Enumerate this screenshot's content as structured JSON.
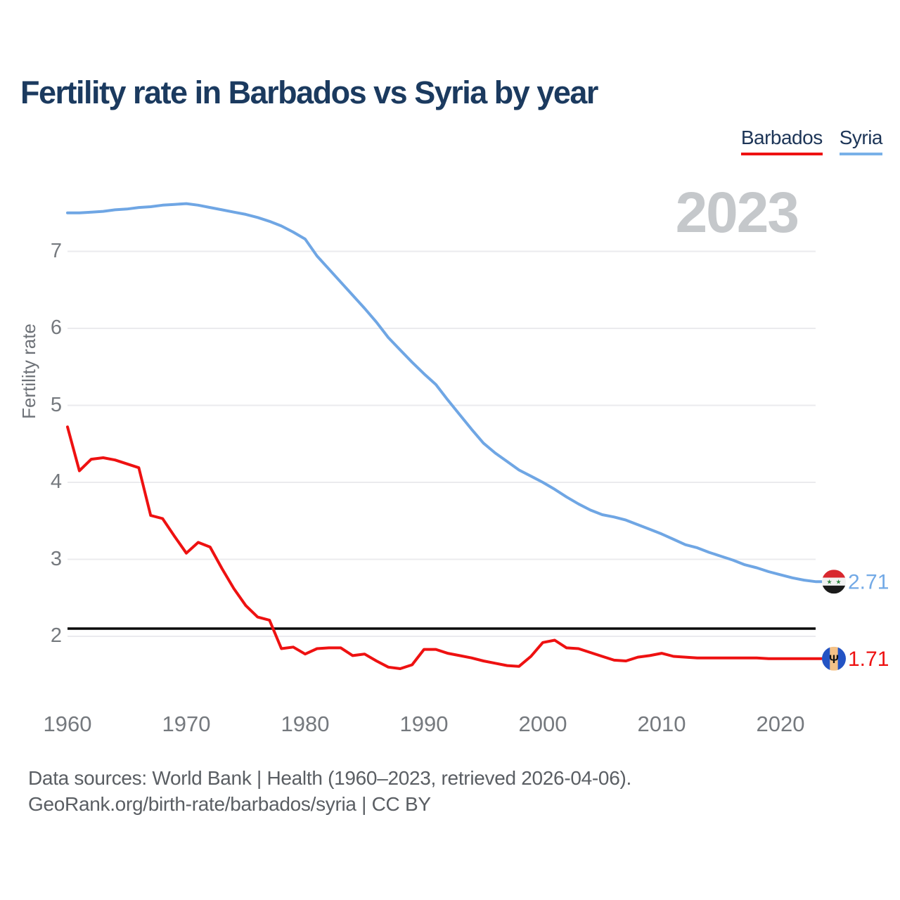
{
  "header": {
    "title": "Fertility rate in Barbados vs Syria by year"
  },
  "legend": {
    "items": [
      {
        "label": "Barbados",
        "color": "#ee1111"
      },
      {
        "label": "Syria",
        "color": "#79b1e8"
      }
    ]
  },
  "watermark": "2023",
  "chart_data": {
    "type": "line",
    "title": "Fertility rate in Barbados vs Syria by year",
    "xlabel": "",
    "ylabel": "Fertility rate",
    "x_range": [
      1960,
      2023
    ],
    "ylim": [
      1.4,
      7.9
    ],
    "grid": "horizontal",
    "legend_position": "top-right",
    "y_ticks": [
      2,
      3,
      4,
      5,
      6,
      7
    ],
    "x_ticks": [
      1960,
      1970,
      1980,
      1990,
      2000,
      2010,
      2020
    ],
    "reference_line": {
      "value": 2.1,
      "color": "#0a0a0a"
    },
    "years": [
      1960,
      1961,
      1962,
      1963,
      1964,
      1965,
      1966,
      1967,
      1968,
      1969,
      1970,
      1971,
      1972,
      1973,
      1974,
      1975,
      1976,
      1977,
      1978,
      1979,
      1980,
      1981,
      1982,
      1983,
      1984,
      1985,
      1986,
      1987,
      1988,
      1989,
      1990,
      1991,
      1992,
      1993,
      1994,
      1995,
      1996,
      1997,
      1998,
      1999,
      2000,
      2001,
      2002,
      2003,
      2004,
      2005,
      2006,
      2007,
      2008,
      2009,
      2010,
      2011,
      2012,
      2013,
      2014,
      2015,
      2016,
      2017,
      2018,
      2019,
      2020,
      2021,
      2022,
      2023
    ],
    "series": [
      {
        "name": "Barbados",
        "color": "#ee1111",
        "end_label": "1.71",
        "values": [
          4.72,
          4.15,
          4.3,
          4.32,
          4.29,
          4.24,
          4.19,
          3.57,
          3.53,
          3.3,
          3.08,
          3.22,
          3.16,
          2.88,
          2.62,
          2.4,
          2.25,
          2.21,
          1.84,
          1.86,
          1.77,
          1.84,
          1.85,
          1.85,
          1.75,
          1.77,
          1.68,
          1.6,
          1.58,
          1.63,
          1.83,
          1.83,
          1.78,
          1.75,
          1.72,
          1.68,
          1.65,
          1.62,
          1.61,
          1.74,
          1.92,
          1.95,
          1.85,
          1.84,
          1.79,
          1.74,
          1.69,
          1.68,
          1.73,
          1.75,
          1.78,
          1.74,
          1.73,
          1.72,
          1.72,
          1.72,
          1.72,
          1.72,
          1.72,
          1.71,
          1.71,
          1.71,
          1.71,
          1.71
        ]
      },
      {
        "name": "Syria",
        "color": "#6fa6e4",
        "end_label": "2.71",
        "values": [
          7.5,
          7.5,
          7.51,
          7.52,
          7.54,
          7.55,
          7.57,
          7.58,
          7.6,
          7.61,
          7.62,
          7.6,
          7.57,
          7.54,
          7.51,
          7.48,
          7.44,
          7.39,
          7.33,
          7.25,
          7.16,
          6.94,
          6.77,
          6.6,
          6.43,
          6.26,
          6.08,
          5.88,
          5.72,
          5.56,
          5.41,
          5.27,
          5.07,
          4.88,
          4.69,
          4.51,
          4.38,
          4.27,
          4.16,
          4.08,
          4.0,
          3.91,
          3.81,
          3.72,
          3.64,
          3.58,
          3.55,
          3.51,
          3.45,
          3.39,
          3.33,
          3.26,
          3.19,
          3.15,
          3.09,
          3.04,
          2.99,
          2.93,
          2.89,
          2.84,
          2.8,
          2.76,
          2.73,
          2.71
        ]
      }
    ],
    "flags": {
      "syria": {
        "red": "#d8272e",
        "white": "#f2f2f2",
        "black": "#1a1a1a",
        "star_color": "#2e8540",
        "star_glyph": "★"
      },
      "barbados": {
        "blue": "#2353c4",
        "gold": "#f5c287",
        "trident_color": "#111111",
        "trident_glyph": "Ψ"
      }
    }
  },
  "footer": {
    "line1": "Data sources: World Bank | Health (1960–2023, retrieved 2026-04-06).",
    "line2": "GeoRank.org/birth-rate/barbados/syria | CC BY"
  }
}
